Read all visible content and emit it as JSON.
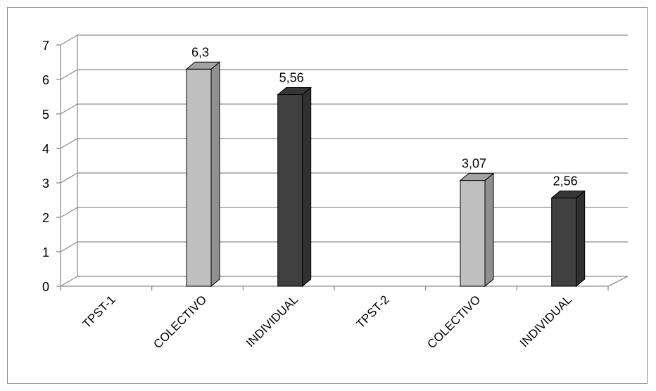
{
  "chart_data": {
    "type": "bar",
    "three_d": true,
    "categories": [
      "TPST-1",
      "COLECTIVO",
      "INDIVIDUAL",
      "TPST-2",
      "COLECTIVO",
      "INDIVIDUAL"
    ],
    "values": [
      null,
      6.3,
      5.56,
      null,
      3.07,
      2.56
    ],
    "data_labels": [
      "",
      "6,3",
      "5,56",
      "",
      "3,07",
      "2,56"
    ],
    "bar_colors": [
      "",
      "#c0c0c0",
      "#404040",
      "",
      "#c0c0c0",
      "#404040"
    ],
    "ylim": [
      0,
      7
    ],
    "yticks": [
      "0",
      "1",
      "2",
      "3",
      "4",
      "5",
      "6",
      "7"
    ],
    "title": "",
    "xlabel": "",
    "ylabel": "",
    "grid": true,
    "legend": "none"
  }
}
